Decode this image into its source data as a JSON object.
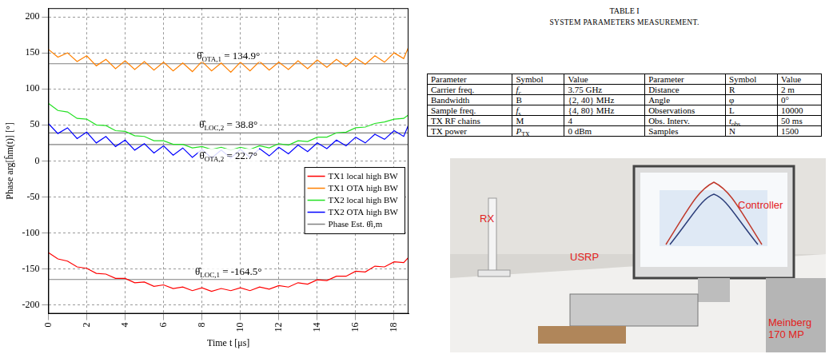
{
  "chart_data": {
    "type": "line",
    "x_label": "Time t [μs]",
    "y_label": "Phase arg[ĥm(t)] [°]",
    "x": [
      0,
      0.5,
      1,
      1.5,
      2,
      2.5,
      3,
      3.5,
      4,
      4.5,
      5,
      5.5,
      6,
      6.5,
      7,
      7.5,
      8,
      8.5,
      9,
      9.5,
      10,
      10.5,
      11,
      11.5,
      12,
      12.5,
      13,
      13.5,
      14,
      14.5,
      15,
      15.5,
      16,
      16.5,
      17,
      17.5,
      18,
      18.5,
      18.75
    ],
    "series": [
      {
        "name": "TX1 local high BW",
        "color": "#ff0000",
        "values": [
          -127,
          -136,
          -139,
          -147,
          -149,
          -156,
          -157,
          -163,
          -163,
          -169,
          -168,
          -174,
          -172,
          -177,
          -175,
          -180,
          -176,
          -181,
          -177,
          -180,
          -176,
          -180,
          -175,
          -178,
          -173,
          -175,
          -169,
          -171,
          -165,
          -166,
          -160,
          -160,
          -153,
          -154,
          -146,
          -147,
          -140,
          -141,
          -134
        ]
      },
      {
        "name": "TX1 OTA high BW",
        "color": "#ff8000",
        "values": [
          155,
          144,
          150,
          138,
          146,
          132,
          141,
          128,
          139,
          127,
          138,
          126,
          137,
          125,
          136,
          124,
          138,
          125,
          136,
          123,
          137,
          125,
          138,
          126,
          137,
          127,
          139,
          128,
          140,
          130,
          141,
          131,
          143,
          134,
          146,
          137,
          150,
          142,
          158
        ]
      },
      {
        "name": "TX2 local high BW",
        "color": "#22e022",
        "values": [
          80,
          70,
          68,
          59,
          58,
          50,
          49,
          42,
          41,
          35,
          34,
          28,
          28,
          23,
          23,
          18,
          20,
          16,
          19,
          15,
          19,
          16,
          21,
          18,
          24,
          22,
          28,
          27,
          33,
          33,
          39,
          40,
          46,
          47,
          52,
          54,
          58,
          59,
          64
        ]
      },
      {
        "name": "TX2 OTA high BW",
        "color": "#0000ff",
        "values": [
          52,
          38,
          46,
          31,
          40,
          25,
          34,
          20,
          29,
          15,
          24,
          11,
          21,
          8,
          18,
          5,
          16,
          4,
          15,
          4,
          16,
          5,
          17,
          7,
          19,
          10,
          22,
          13,
          25,
          17,
          29,
          21,
          33,
          25,
          37,
          30,
          42,
          34,
          50
        ]
      }
    ],
    "phase_estimates": {
      "name": "Phase Est. θ̂i,m",
      "color": "#808080",
      "values": [
        134.9,
        38.8,
        22.7,
        -164.5
      ],
      "labels": [
        {
          "symbol": "θ̂",
          "subscript": "OTA,1",
          "text": " = 134.9°"
        },
        {
          "symbol": "θ̂",
          "subscript": "LOC,2",
          "text": " = 38.8°"
        },
        {
          "symbol": "θ̂",
          "subscript": "OTA,2",
          "text": " = 22.7°"
        },
        {
          "symbol": "θ̂",
          "subscript": "LOC,1",
          "text": " = -164.5°"
        }
      ]
    },
    "xlim": [
      0,
      18.75
    ],
    "xticks": [
      0,
      2,
      4,
      6,
      8,
      10,
      12,
      14,
      16,
      18
    ],
    "ylim": [
      -212,
      212
    ],
    "yticks": [
      -200,
      -150,
      -100,
      -50,
      0,
      50,
      100,
      150,
      200
    ],
    "grid": true,
    "legend": "right"
  },
  "table": {
    "title": "TABLE I",
    "caption": "SYSTEM PARAMETERS MEASUREMENT.",
    "header": [
      "Parameter",
      "Symbol",
      "Value",
      "Parameter",
      "Symbol",
      "Value"
    ],
    "rows": [
      [
        "Carrier freq.",
        {
          "text": "f",
          "sub": "c"
        },
        "3.75 GHz",
        "Distance",
        "R",
        "2 m"
      ],
      [
        "Bandwidth",
        "B",
        "{2, 40} MHz",
        "Angle",
        "φ",
        "0°"
      ],
      [
        "Sample freq.",
        {
          "text": "f",
          "sub": "s"
        },
        "{4, 80} MHz",
        "Observations",
        "L",
        "10000"
      ],
      [
        "TX RF chains",
        "M",
        "4",
        "Obs. Interv.",
        {
          "text": "t",
          "sub": "obs"
        },
        "50 ms"
      ],
      [
        "TX power",
        {
          "text": "P",
          "sub": "TX"
        },
        "0 dBm",
        "Samples",
        "N",
        "1500"
      ]
    ]
  },
  "photo": {
    "labels": [
      "RX",
      "USRP",
      "Controller",
      "Meinberg 170 MP"
    ]
  }
}
